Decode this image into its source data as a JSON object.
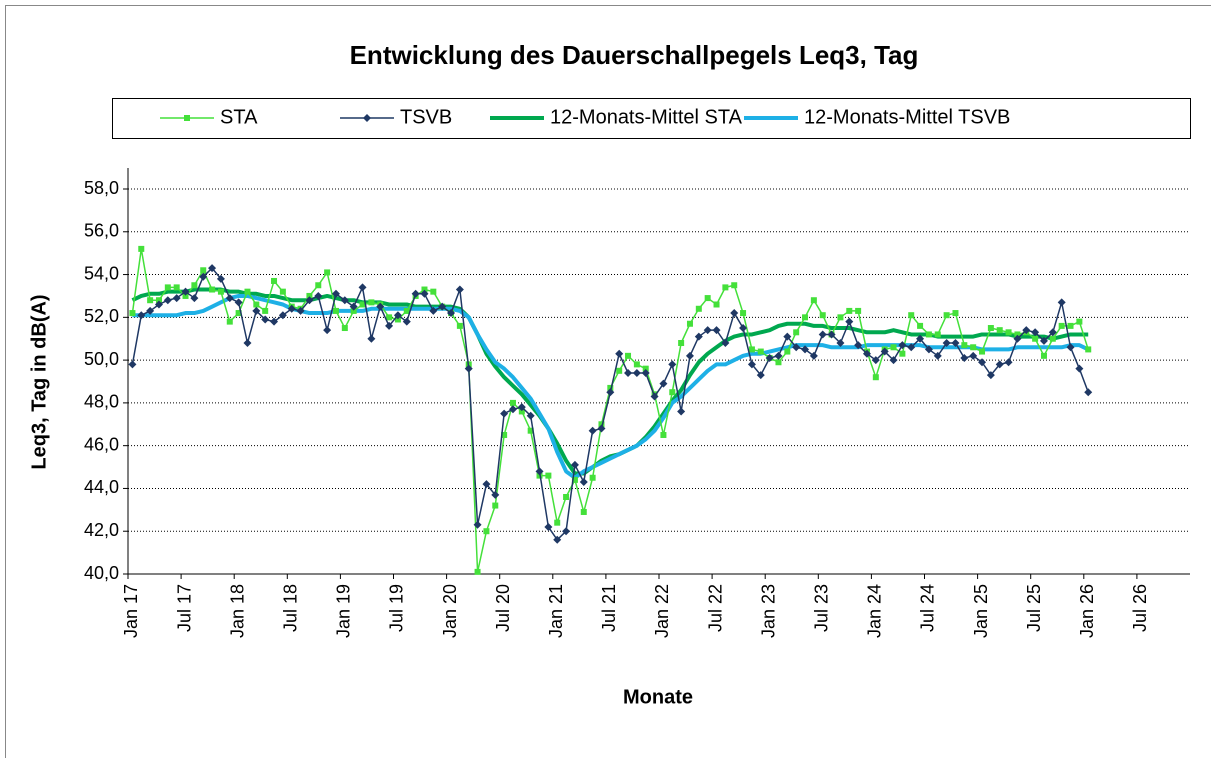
{
  "chart_data": {
    "type": "line",
    "title": "Entwicklung des Dauerschallpegels Leq3, Tag",
    "x_label": "Monate",
    "y_label": "Leq3, Tag in dB(A)",
    "categories": [
      "Jan 17",
      null,
      null,
      null,
      null,
      null,
      "Jul 17",
      null,
      null,
      null,
      null,
      null,
      "Jan 18",
      null,
      null,
      null,
      null,
      null,
      "Jul 18",
      null,
      null,
      null,
      null,
      null,
      "Jan 19",
      null,
      null,
      null,
      null,
      null,
      "Jul 19",
      null,
      null,
      null,
      null,
      null,
      "Jan 20",
      null,
      null,
      null,
      null,
      null,
      "Jul 20",
      null,
      null,
      null,
      null,
      null,
      "Jan 21",
      null,
      null,
      null,
      null,
      null,
      "Jul 21",
      null,
      null,
      null,
      null,
      null,
      "Jan 22",
      null,
      null,
      null,
      null,
      null,
      "Jul 22",
      null,
      null,
      null,
      null,
      null,
      "Jan 23",
      null,
      null,
      null,
      null,
      null,
      "Jul 23",
      null,
      null,
      null,
      null,
      null,
      "Jan 24",
      null,
      null,
      null,
      null,
      null,
      "Jul 24",
      null,
      null,
      null,
      null,
      null,
      "Jan 25",
      null,
      null,
      null,
      null,
      null,
      "Jul 25",
      null,
      null,
      null,
      null,
      null,
      "Jan 26",
      null,
      null,
      null,
      null,
      null,
      "Jul 26",
      null,
      null,
      null,
      null,
      null
    ],
    "series": [
      {
        "name": "STA",
        "color": "#44e03a",
        "marker": "square",
        "values": [
          52.2,
          55.2,
          52.8,
          52.8,
          53.4,
          53.4,
          53.0,
          53.5,
          54.2,
          53.3,
          53.2,
          51.8,
          52.2,
          53.2,
          52.6,
          52.3,
          53.7,
          53.2,
          52.5,
          52.4,
          53.0,
          53.5,
          54.1,
          52.3,
          51.5,
          52.3,
          52.6,
          52.7,
          52.6,
          52.0,
          51.9,
          52.3,
          53.0,
          53.3,
          53.2,
          52.5,
          52.2,
          51.6,
          49.8,
          40.1,
          42.0,
          43.2,
          46.5,
          48.0,
          47.6,
          46.7,
          44.6,
          44.6,
          42.4,
          43.6,
          44.4,
          42.9,
          44.5,
          47.0,
          48.7,
          49.5,
          50.2,
          49.8,
          49.6,
          48.4,
          46.5,
          48.5,
          50.8,
          51.7,
          52.4,
          52.9,
          52.6,
          53.4,
          53.5,
          52.2,
          50.5,
          50.4,
          50.1,
          49.9,
          50.4,
          51.3,
          52.0,
          52.8,
          52.1,
          51.2,
          52.0,
          52.3,
          52.3,
          50.4,
          49.2,
          50.5,
          50.6,
          50.3,
          52.1,
          51.6,
          51.2,
          51.2,
          52.1,
          52.2,
          50.7,
          50.6,
          50.4,
          51.5,
          51.4,
          51.3,
          51.2,
          51.3,
          51.0,
          50.2,
          51.0,
          51.6,
          51.6,
          51.8,
          50.5,
          null,
          null,
          null,
          null,
          null,
          null,
          null,
          null,
          null,
          null,
          null
        ]
      },
      {
        "name": "TSVB",
        "color": "#1f3864",
        "marker": "diamond",
        "values": [
          49.8,
          52.1,
          52.3,
          52.6,
          52.8,
          52.9,
          53.2,
          52.9,
          53.9,
          54.3,
          53.8,
          52.9,
          52.7,
          50.8,
          52.3,
          51.9,
          51.8,
          52.1,
          52.4,
          52.3,
          52.8,
          53.0,
          51.4,
          53.1,
          52.8,
          52.5,
          53.4,
          51.0,
          52.5,
          51.6,
          52.1,
          51.8,
          53.1,
          53.1,
          52.3,
          52.5,
          52.2,
          53.3,
          49.6,
          42.3,
          44.2,
          43.7,
          47.5,
          47.7,
          47.8,
          47.4,
          44.8,
          42.2,
          41.6,
          42.0,
          45.1,
          44.3,
          46.7,
          46.8,
          48.5,
          50.3,
          49.4,
          49.4,
          49.4,
          48.3,
          48.9,
          49.8,
          47.6,
          50.2,
          51.1,
          51.4,
          51.4,
          50.8,
          52.2,
          51.5,
          49.8,
          49.3,
          50.1,
          50.2,
          51.1,
          50.6,
          50.5,
          50.2,
          51.2,
          51.2,
          50.8,
          51.8,
          50.7,
          50.3,
          50.0,
          50.4,
          50.0,
          50.7,
          50.6,
          51.0,
          50.5,
          50.2,
          50.8,
          50.8,
          50.1,
          50.2,
          49.9,
          49.3,
          49.8,
          49.9,
          51.0,
          51.4,
          51.3,
          50.9,
          51.3,
          52.7,
          50.6,
          49.6,
          48.5,
          null,
          null,
          null,
          null,
          null,
          null,
          null,
          null,
          null,
          null,
          null
        ]
      },
      {
        "name": "12-Monats-Mittel STA",
        "color": "#00a84f",
        "marker": "none",
        "values": [
          52.8,
          53.0,
          53.1,
          53.1,
          53.2,
          53.2,
          53.2,
          53.3,
          53.3,
          53.3,
          53.3,
          53.2,
          53.2,
          53.1,
          53.1,
          53.0,
          53.0,
          52.9,
          52.8,
          52.8,
          52.8,
          52.9,
          53.0,
          52.9,
          52.8,
          52.8,
          52.7,
          52.7,
          52.7,
          52.6,
          52.6,
          52.6,
          52.5,
          52.5,
          52.5,
          52.5,
          52.5,
          52.4,
          52.0,
          51.2,
          50.3,
          49.7,
          49.2,
          48.8,
          48.4,
          47.9,
          47.4,
          46.8,
          46.1,
          45.3,
          44.7,
          44.7,
          45.0,
          45.3,
          45.5,
          45.6,
          45.8,
          46.0,
          46.4,
          46.9,
          47.5,
          48.1,
          48.6,
          49.3,
          49.9,
          50.3,
          50.6,
          50.9,
          51.1,
          51.2,
          51.2,
          51.3,
          51.4,
          51.6,
          51.7,
          51.7,
          51.7,
          51.6,
          51.6,
          51.5,
          51.5,
          51.5,
          51.4,
          51.3,
          51.3,
          51.3,
          51.4,
          51.3,
          51.2,
          51.2,
          51.2,
          51.1,
          51.1,
          51.1,
          51.1,
          51.1,
          51.2,
          51.2,
          51.2,
          51.2,
          51.1,
          51.1,
          51.1,
          51.1,
          51.0,
          51.1,
          51.2,
          51.2,
          51.2,
          null,
          null,
          null,
          null,
          null,
          null,
          null,
          null,
          null,
          null,
          null
        ]
      },
      {
        "name": "12-Monats-Mittel TSVB",
        "color": "#1eb0e6",
        "marker": "none",
        "values": [
          52.1,
          52.1,
          52.1,
          52.1,
          52.1,
          52.1,
          52.2,
          52.2,
          52.3,
          52.5,
          52.7,
          52.9,
          53.0,
          53.0,
          52.9,
          52.8,
          52.7,
          52.6,
          52.4,
          52.3,
          52.2,
          52.2,
          52.2,
          52.3,
          52.3,
          52.3,
          52.3,
          52.4,
          52.4,
          52.4,
          52.4,
          52.4,
          52.4,
          52.4,
          52.4,
          52.4,
          52.4,
          52.3,
          52.0,
          51.2,
          50.5,
          49.9,
          49.6,
          49.2,
          48.7,
          48.2,
          47.5,
          46.8,
          45.7,
          44.8,
          44.5,
          44.8,
          45.0,
          45.2,
          45.4,
          45.6,
          45.8,
          46.0,
          46.3,
          46.7,
          47.3,
          48.0,
          48.3,
          48.7,
          49.1,
          49.5,
          49.8,
          49.8,
          50.0,
          50.2,
          50.3,
          50.3,
          50.4,
          50.5,
          50.6,
          50.7,
          50.7,
          50.7,
          50.7,
          50.6,
          50.6,
          50.6,
          50.6,
          50.7,
          50.7,
          50.7,
          50.7,
          50.7,
          50.7,
          50.7,
          50.6,
          50.6,
          50.6,
          50.6,
          50.6,
          50.6,
          50.5,
          50.5,
          50.5,
          50.5,
          50.6,
          50.6,
          50.6,
          50.6,
          50.6,
          50.6,
          50.7,
          50.7,
          50.5,
          null,
          null,
          null,
          null,
          null,
          null,
          null,
          null,
          null,
          null,
          null
        ]
      }
    ],
    "ylim": [
      40,
      58
    ],
    "yticks": [
      {
        "value": 40,
        "label": "40,0"
      },
      {
        "value": 42,
        "label": "42,0"
      },
      {
        "value": 44,
        "label": "44,0"
      },
      {
        "value": 46,
        "label": "46,0"
      },
      {
        "value": 48,
        "label": "48,0"
      },
      {
        "value": 50,
        "label": "50,0"
      },
      {
        "value": 52,
        "label": "52,0"
      },
      {
        "value": 54,
        "label": "54,0"
      },
      {
        "value": 56,
        "label": "56,0"
      },
      {
        "value": 58,
        "label": "58,0"
      }
    ],
    "grid": true,
    "legend": "top"
  }
}
